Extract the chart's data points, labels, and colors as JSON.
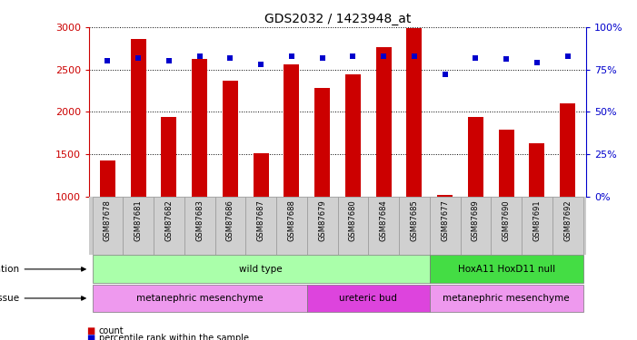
{
  "title": "GDS2032 / 1423948_at",
  "samples": [
    "GSM87678",
    "GSM87681",
    "GSM87682",
    "GSM87683",
    "GSM87686",
    "GSM87687",
    "GSM87688",
    "GSM87679",
    "GSM87680",
    "GSM87684",
    "GSM87685",
    "GSM87677",
    "GSM87689",
    "GSM87690",
    "GSM87691",
    "GSM87692"
  ],
  "counts": [
    1430,
    2860,
    1940,
    2620,
    2370,
    1510,
    2560,
    2280,
    2440,
    2760,
    2990,
    1020,
    1940,
    1790,
    1630,
    2100
  ],
  "percentiles": [
    80,
    82,
    80,
    83,
    82,
    78,
    83,
    82,
    83,
    83,
    83,
    72,
    82,
    81,
    79,
    83
  ],
  "ylim_left": [
    1000,
    3000
  ],
  "ylim_right": [
    0,
    100
  ],
  "yticks_left": [
    1000,
    1500,
    2000,
    2500,
    3000
  ],
  "yticks_right": [
    0,
    25,
    50,
    75,
    100
  ],
  "bar_color": "#cc0000",
  "dot_color": "#0000cc",
  "background_color": "#ffffff",
  "genotype_groups": [
    {
      "label": "wild type",
      "start": 0,
      "end": 10,
      "color": "#aaffaa"
    },
    {
      "label": "HoxA11 HoxD11 null",
      "start": 11,
      "end": 15,
      "color": "#44dd44"
    }
  ],
  "tissue_groups": [
    {
      "label": "metanephric mesenchyme",
      "start": 0,
      "end": 6,
      "color": "#ee99ee"
    },
    {
      "label": "ureteric bud",
      "start": 7,
      "end": 10,
      "color": "#dd44dd"
    },
    {
      "label": "metanephric mesenchyme",
      "start": 11,
      "end": 15,
      "color": "#ee99ee"
    }
  ],
  "bar_width": 0.5,
  "left_axis_color": "#cc0000",
  "right_axis_color": "#0000cc",
  "xlim": [
    -0.6,
    15.6
  ]
}
